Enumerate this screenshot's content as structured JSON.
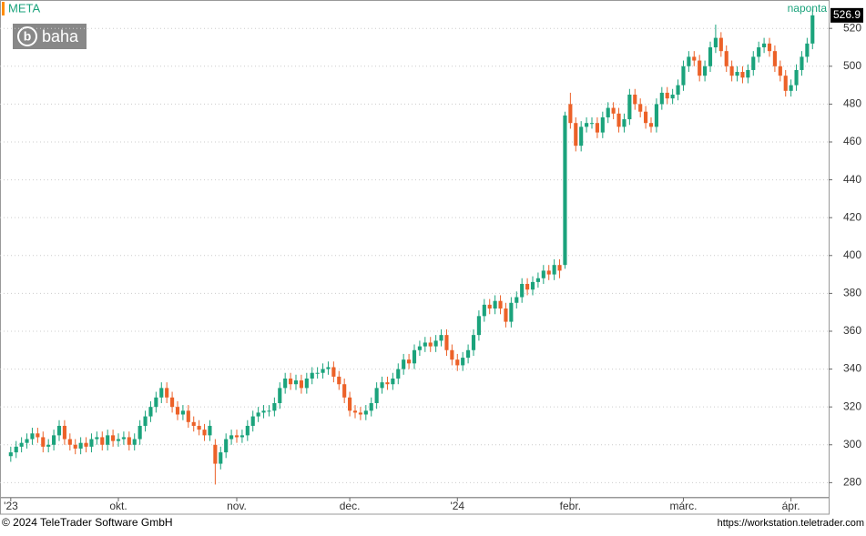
{
  "chart_data": {
    "type": "candlestick",
    "symbol": "META",
    "interval": "naponta",
    "copyright": "© 2024 TeleTrader Software GmbH",
    "url": "https://workstation.teletrader.com",
    "logo": "baha",
    "up_color": "#1ba37c",
    "down_color": "#ec6128",
    "grid": true,
    "ylim": [
      272,
      535
    ],
    "yticks": [
      280,
      300,
      320,
      340,
      360,
      380,
      400,
      420,
      440,
      460,
      480,
      500,
      520
    ],
    "xlim": [
      -2,
      152
    ],
    "xticks": [
      {
        "value": 0,
        "label": "'23"
      },
      {
        "value": 20,
        "label": "okt."
      },
      {
        "value": 42,
        "label": "nov."
      },
      {
        "value": 63,
        "label": "dec."
      },
      {
        "value": 83,
        "label": "'24"
      },
      {
        "value": 104,
        "label": "febr."
      },
      {
        "value": 125,
        "label": "márc."
      },
      {
        "value": 145,
        "label": "ápr."
      }
    ],
    "last_value": 526.9,
    "open": [
      294,
      296,
      299,
      301,
      303,
      306,
      304,
      299,
      300,
      305,
      310,
      303,
      300,
      298,
      301,
      299,
      303,
      304,
      300,
      305,
      302,
      303,
      304,
      300,
      303,
      310,
      315,
      320,
      325,
      330,
      325,
      320,
      316,
      318,
      312,
      310,
      308,
      305,
      300,
      290,
      296,
      303,
      305,
      304,
      305,
      310,
      315,
      317,
      318,
      318,
      322,
      330,
      335,
      332,
      334,
      330,
      335,
      338,
      338,
      340,
      341,
      336,
      332,
      325,
      318,
      317,
      316,
      318,
      322,
      330,
      333,
      332,
      335,
      340,
      345,
      343,
      350,
      352,
      354,
      352,
      355,
      358,
      350,
      345,
      342,
      346,
      350,
      358,
      368,
      374,
      372,
      376,
      372,
      365,
      375,
      378,
      385,
      382,
      386,
      388,
      392,
      390,
      395,
      395,
      480,
      470,
      458,
      468,
      470,
      470,
      465,
      473,
      478,
      475,
      468,
      472,
      485,
      480,
      476,
      470,
      468,
      480,
      486,
      483,
      485,
      490,
      500,
      505,
      503,
      495,
      500,
      510,
      515,
      508,
      500,
      495,
      497,
      494,
      498,
      505,
      510,
      512,
      508,
      500,
      495,
      487,
      490,
      498,
      505,
      512
    ],
    "high": [
      299,
      302,
      304,
      306,
      309,
      309,
      307,
      303,
      308,
      313,
      313,
      306,
      303,
      304,
      304,
      306,
      307,
      307,
      308,
      308,
      306,
      307,
      307,
      306,
      313,
      318,
      323,
      328,
      333,
      333,
      328,
      323,
      321,
      321,
      315,
      313,
      311,
      313,
      303,
      299,
      306,
      308,
      308,
      308,
      313,
      318,
      320,
      321,
      321,
      325,
      333,
      338,
      338,
      337,
      337,
      338,
      341,
      341,
      343,
      344,
      344,
      339,
      335,
      328,
      321,
      320,
      321,
      325,
      333,
      336,
      336,
      338,
      343,
      348,
      348,
      353,
      355,
      357,
      357,
      358,
      361,
      361,
      353,
      348,
      349,
      353,
      361,
      371,
      377,
      377,
      379,
      379,
      375,
      378,
      381,
      388,
      388,
      389,
      391,
      395,
      395,
      398,
      398,
      476,
      486,
      473,
      471,
      473,
      473,
      473,
      476,
      481,
      481,
      478,
      475,
      488,
      488,
      483,
      479,
      473,
      483,
      489,
      489,
      488,
      493,
      503,
      508,
      508,
      506,
      503,
      513,
      522,
      518,
      511,
      503,
      500,
      500,
      501,
      508,
      513,
      515,
      515,
      511,
      503,
      498,
      493,
      501,
      508,
      515,
      530
    ],
    "low": [
      291,
      293,
      296,
      298,
      300,
      301,
      296,
      296,
      297,
      302,
      300,
      297,
      295,
      295,
      296,
      296,
      300,
      297,
      297,
      299,
      299,
      300,
      297,
      297,
      300,
      307,
      312,
      317,
      322,
      322,
      317,
      313,
      313,
      309,
      307,
      305,
      302,
      302,
      279,
      287,
      293,
      300,
      301,
      301,
      302,
      307,
      312,
      314,
      315,
      315,
      319,
      327,
      329,
      329,
      327,
      327,
      332,
      335,
      335,
      337,
      333,
      329,
      322,
      315,
      314,
      313,
      313,
      315,
      319,
      327,
      329,
      329,
      332,
      337,
      340,
      340,
      347,
      349,
      349,
      349,
      352,
      347,
      342,
      339,
      339,
      343,
      347,
      355,
      365,
      369,
      369,
      369,
      362,
      362,
      372,
      375,
      379,
      379,
      383,
      385,
      387,
      387,
      388,
      393,
      467,
      455,
      455,
      465,
      467,
      462,
      462,
      470,
      472,
      465,
      465,
      469,
      477,
      473,
      467,
      465,
      465,
      477,
      480,
      480,
      482,
      487,
      497,
      500,
      492,
      492,
      497,
      507,
      505,
      497,
      492,
      492,
      491,
      491,
      495,
      502,
      507,
      505,
      497,
      492,
      484,
      484,
      487,
      495,
      502,
      509
    ],
    "close": [
      296,
      299,
      301,
      303,
      306,
      304,
      299,
      300,
      305,
      310,
      303,
      300,
      298,
      301,
      299,
      303,
      304,
      300,
      305,
      302,
      303,
      304,
      300,
      303,
      310,
      315,
      320,
      325,
      330,
      325,
      320,
      316,
      318,
      312,
      310,
      308,
      305,
      310,
      290,
      296,
      303,
      305,
      304,
      305,
      310,
      315,
      317,
      318,
      318,
      322,
      330,
      335,
      332,
      334,
      330,
      335,
      338,
      338,
      340,
      341,
      336,
      332,
      325,
      318,
      317,
      316,
      318,
      322,
      330,
      333,
      332,
      335,
      340,
      345,
      343,
      350,
      352,
      354,
      352,
      355,
      358,
      350,
      345,
      342,
      346,
      350,
      358,
      368,
      374,
      372,
      376,
      372,
      365,
      375,
      378,
      385,
      382,
      386,
      388,
      392,
      390,
      395,
      392,
      474,
      470,
      458,
      468,
      470,
      470,
      465,
      473,
      478,
      475,
      468,
      472,
      485,
      480,
      476,
      470,
      468,
      480,
      486,
      483,
      485,
      490,
      500,
      505,
      503,
      495,
      500,
      510,
      515,
      508,
      500,
      495,
      497,
      494,
      498,
      505,
      510,
      512,
      508,
      500,
      495,
      487,
      490,
      498,
      505,
      512,
      526.9
    ]
  }
}
